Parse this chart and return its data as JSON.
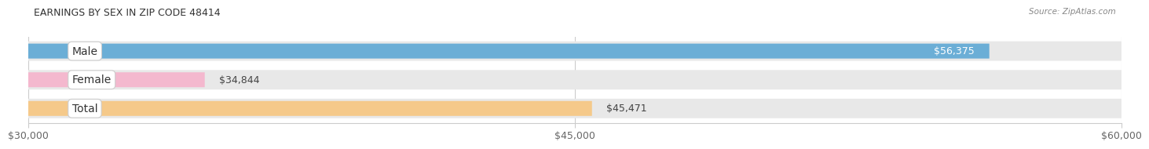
{
  "title": "EARNINGS BY SEX IN ZIP CODE 48414",
  "source": "Source: ZipAtlas.com",
  "categories": [
    "Male",
    "Female",
    "Total"
  ],
  "values": [
    56375,
    34844,
    45471
  ],
  "bar_colors": [
    "#6baed6",
    "#f4b8ce",
    "#f5c98a"
  ],
  "track_color": "#e8e8e8",
  "label_colors": [
    "#ffffff",
    "#555555",
    "#555555"
  ],
  "value_labels": [
    "$56,375",
    "$34,844",
    "$45,471"
  ],
  "x_min": 30000,
  "x_max": 60000,
  "x_ticks": [
    30000,
    45000,
    60000
  ],
  "x_tick_labels": [
    "$30,000",
    "$45,000",
    "$60,000"
  ],
  "title_fontsize": 9,
  "tick_fontsize": 9,
  "value_fontsize": 9,
  "category_fontsize": 10
}
